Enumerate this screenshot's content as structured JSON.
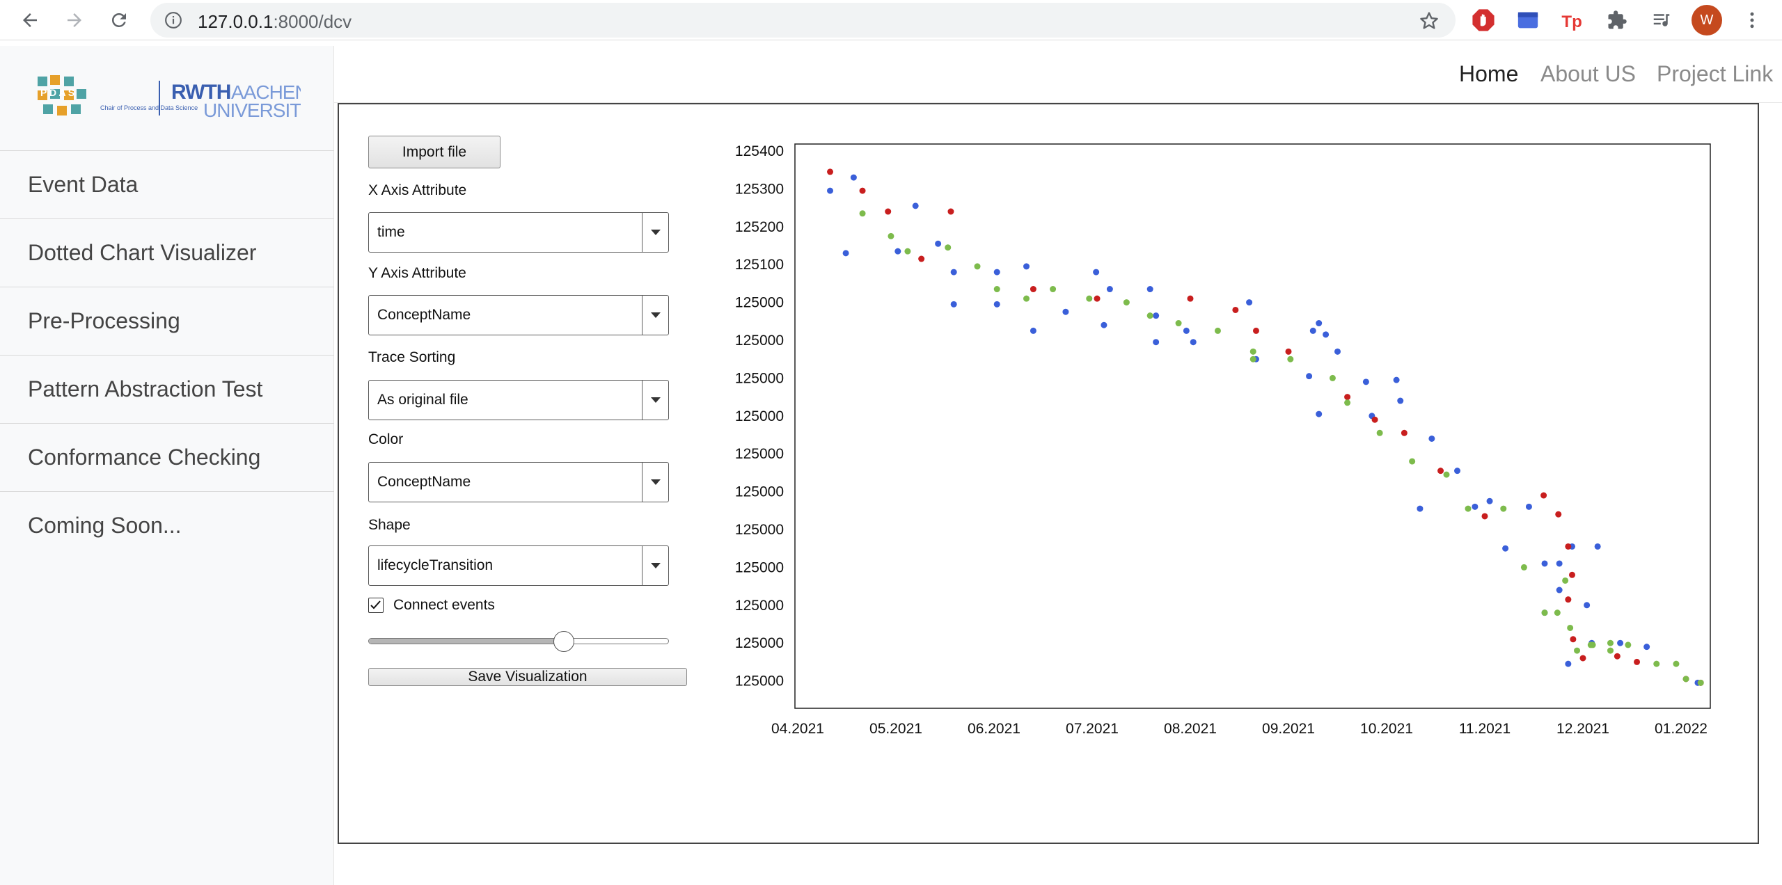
{
  "browser": {
    "url_host": "127.0.0.1",
    "url_path": ":8000/dcv",
    "profile_initial": "W"
  },
  "sidebar": {
    "logo_left": "P D A S",
    "logo_caption": "Chair of Process and Data Science",
    "logo_brand_1": "RWTH",
    "logo_brand_2": "AACHEN",
    "logo_brand_3": "UNIVERSITY",
    "items": [
      {
        "label": "Event Data"
      },
      {
        "label": "Dotted Chart Visualizer"
      },
      {
        "label": "Pre-Processing"
      },
      {
        "label": "Pattern Abstraction Test"
      },
      {
        "label": "Conformance Checking"
      },
      {
        "label": "Coming Soon..."
      }
    ]
  },
  "topnav": {
    "home": "Home",
    "about": "About US",
    "project": "Project Link"
  },
  "controls": {
    "import_label": "Import file",
    "x_axis_label": "X Axis Attribute",
    "x_axis_value": "time",
    "y_axis_label": "Y Axis Attribute",
    "y_axis_value": "ConceptName",
    "trace_sorting_label": "Trace Sorting",
    "trace_sorting_value": "As original file",
    "color_label": "Color",
    "color_value": "ConceptName",
    "shape_label": "Shape",
    "shape_value": "lifecycleTransition",
    "connect_label": "Connect events",
    "connect_checked": true,
    "slider_level": 0.65,
    "save_label": "Save Visualization"
  },
  "colors": {
    "blue": "#3a5fd9",
    "red": "#c81e1e",
    "green": "#7dbb4c"
  },
  "chart_data": {
    "type": "scatter",
    "x_tick_labels": [
      "04.2021",
      "05.2021",
      "06.2021",
      "07.2021",
      "08.2021",
      "09.2021",
      "10.2021",
      "11.2021",
      "12.2021",
      "01.2022"
    ],
    "y_tick_labels": [
      "125400",
      "125300",
      "125200",
      "125100",
      "125000",
      "125000",
      "125000",
      "125000",
      "125000",
      "125000",
      "125000",
      "125000",
      "125000",
      "125000",
      "125000"
    ],
    "x_unit": "months since 04.2021 (tick k = label k)",
    "y_unit": "row index (0 = top tick 125400, 14 = bottom tick)",
    "xlim": [
      -0.06,
      9.25
    ],
    "ylim": [
      -0.25,
      14.5
    ],
    "series": [
      {
        "color": "blue",
        "points": [
          [
            0.33,
            1.05
          ],
          [
            0.49,
            2.7
          ],
          [
            0.57,
            0.7
          ],
          [
            1.2,
            1.45
          ],
          [
            1.02,
            2.65
          ],
          [
            1.43,
            2.45
          ],
          [
            1.59,
            3.2
          ],
          [
            1.59,
            4.05
          ],
          [
            2.03,
            3.2
          ],
          [
            2.03,
            4.05
          ],
          [
            2.33,
            3.05
          ],
          [
            2.4,
            4.75
          ],
          [
            2.73,
            4.25
          ],
          [
            3.04,
            3.2
          ],
          [
            3.12,
            4.6
          ],
          [
            3.18,
            3.65
          ],
          [
            3.59,
            3.65
          ],
          [
            3.65,
            4.35
          ],
          [
            3.65,
            5.05
          ],
          [
            3.96,
            4.75
          ],
          [
            4.03,
            5.05
          ],
          [
            4.6,
            4.0
          ],
          [
            4.67,
            5.5
          ],
          [
            5.21,
            5.95
          ],
          [
            5.25,
            4.75
          ],
          [
            5.31,
            4.55
          ],
          [
            5.38,
            4.85
          ],
          [
            5.5,
            5.3
          ],
          [
            5.31,
            6.95
          ],
          [
            5.79,
            6.1
          ],
          [
            5.85,
            7.0
          ],
          [
            6.1,
            6.05
          ],
          [
            6.14,
            6.6
          ],
          [
            6.46,
            7.6
          ],
          [
            6.72,
            8.45
          ],
          [
            6.34,
            9.45
          ],
          [
            6.9,
            9.4
          ],
          [
            7.05,
            9.25
          ],
          [
            7.21,
            10.5
          ],
          [
            7.45,
            9.4
          ],
          [
            7.61,
            10.9
          ],
          [
            7.76,
            10.9
          ],
          [
            7.89,
            10.45
          ],
          [
            8.15,
            10.45
          ],
          [
            7.76,
            11.6
          ],
          [
            7.61,
            12.2
          ],
          [
            8.04,
            12.0
          ],
          [
            7.85,
            13.55
          ],
          [
            8.09,
            13.0
          ],
          [
            8.38,
            13.0
          ],
          [
            8.65,
            13.1
          ],
          [
            9.17,
            14.05
          ]
        ]
      },
      {
        "color": "red",
        "points": [
          [
            0.33,
            0.55
          ],
          [
            0.66,
            1.05
          ],
          [
            0.92,
            1.6
          ],
          [
            1.26,
            2.85
          ],
          [
            1.56,
            1.6
          ],
          [
            2.4,
            3.65
          ],
          [
            3.05,
            3.9
          ],
          [
            4.0,
            3.9
          ],
          [
            4.46,
            4.2
          ],
          [
            4.67,
            4.75
          ],
          [
            5.0,
            5.3
          ],
          [
            5.6,
            6.5
          ],
          [
            5.88,
            7.1
          ],
          [
            6.18,
            7.45
          ],
          [
            6.55,
            8.45
          ],
          [
            7.0,
            9.65
          ],
          [
            7.85,
            10.45
          ],
          [
            7.89,
            11.2
          ],
          [
            7.85,
            11.85
          ],
          [
            7.9,
            12.9
          ],
          [
            8.0,
            13.4
          ],
          [
            8.35,
            13.35
          ],
          [
            8.55,
            13.5
          ],
          [
            9.05,
            13.95
          ],
          [
            9.2,
            14.05
          ],
          [
            7.6,
            9.1
          ],
          [
            7.75,
            9.6
          ]
        ]
      },
      {
        "color": "green",
        "points": [
          [
            0.66,
            1.65
          ],
          [
            0.95,
            2.25
          ],
          [
            1.12,
            2.65
          ],
          [
            1.53,
            2.55
          ],
          [
            1.83,
            3.05
          ],
          [
            2.03,
            3.65
          ],
          [
            2.33,
            3.9
          ],
          [
            2.6,
            3.65
          ],
          [
            2.97,
            3.9
          ],
          [
            3.35,
            4.0
          ],
          [
            3.59,
            4.35
          ],
          [
            3.88,
            4.55
          ],
          [
            4.28,
            4.75
          ],
          [
            4.64,
            5.3
          ],
          [
            4.64,
            5.5
          ],
          [
            5.02,
            5.5
          ],
          [
            5.45,
            6.0
          ],
          [
            5.6,
            6.65
          ],
          [
            5.93,
            7.45
          ],
          [
            6.26,
            8.2
          ],
          [
            6.61,
            8.55
          ],
          [
            6.83,
            9.45
          ],
          [
            7.19,
            9.45
          ],
          [
            7.4,
            11.0
          ],
          [
            7.61,
            12.2
          ],
          [
            7.74,
            12.2
          ],
          [
            7.87,
            12.6
          ],
          [
            7.94,
            13.2
          ],
          [
            8.1,
            13.05
          ],
          [
            8.28,
            13.0
          ],
          [
            8.46,
            13.05
          ],
          [
            8.75,
            13.55
          ],
          [
            8.95,
            13.55
          ],
          [
            9.05,
            13.95
          ],
          [
            9.2,
            14.05
          ],
          [
            8.28,
            13.2
          ],
          [
            8.08,
            13.05
          ],
          [
            7.82,
            11.35
          ]
        ]
      }
    ]
  }
}
